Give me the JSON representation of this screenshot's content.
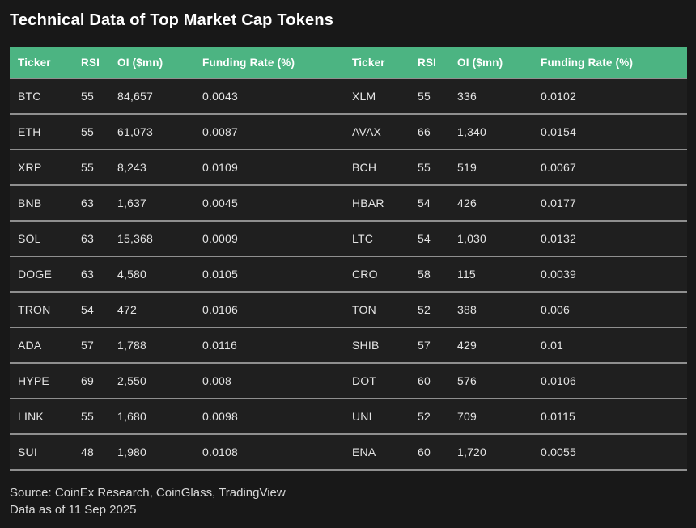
{
  "page": {
    "title": "Technical Data of Top Market Cap Tokens",
    "footer_line1": "Source: CoinEx Research, CoinGlass, TradingView",
    "footer_line2": "Data as of 11 Sep 2025"
  },
  "colors": {
    "page_background": "#181818",
    "row_background": "#1f1f1f",
    "header_background": "#4cb482",
    "divider": "#8f8f8f",
    "title_text": "#ffffff",
    "cell_text": "#e4e4e4",
    "footer_text": "#d8d8d8"
  },
  "chart_data": {
    "type": "table",
    "title": "Technical Data of Top Market Cap Tokens",
    "headers": [
      "Ticker",
      "RSI",
      "OI ($mn)",
      "Funding Rate (%)",
      "Ticker",
      "RSI",
      "OI ($mn)",
      "Funding Rate (%)"
    ],
    "column_keys": [
      "ticker",
      "rsi",
      "oi-mn",
      "funding-rate",
      "ticker",
      "rsi",
      "oi-mn",
      "funding-rate"
    ],
    "rows": [
      [
        "BTC",
        "55",
        "84,657",
        "0.0043",
        "XLM",
        "55",
        "336",
        "0.0102"
      ],
      [
        "ETH",
        "55",
        "61,073",
        "0.0087",
        "AVAX",
        "66",
        "1,340",
        "0.0154"
      ],
      [
        "XRP",
        "55",
        "8,243",
        "0.0109",
        "BCH",
        "55",
        "519",
        "0.0067"
      ],
      [
        "BNB",
        "63",
        "1,637",
        "0.0045",
        "HBAR",
        "54",
        "426",
        "0.0177"
      ],
      [
        "SOL",
        "63",
        "15,368",
        "0.0009",
        "LTC",
        "54",
        "1,030",
        "0.0132"
      ],
      [
        "DOGE",
        "63",
        "4,580",
        "0.0105",
        "CRO",
        "58",
        "115",
        "0.0039"
      ],
      [
        "TRON",
        "54",
        "472",
        "0.0106",
        "TON",
        "52",
        "388",
        "0.006"
      ],
      [
        "ADA",
        "57",
        "1,788",
        "0.0116",
        "SHIB",
        "57",
        "429",
        "0.01"
      ],
      [
        "HYPE",
        "69",
        "2,550",
        "0.008",
        "DOT",
        "60",
        "576",
        "0.0106"
      ],
      [
        "LINK",
        "55",
        "1,680",
        "0.0098",
        "UNI",
        "52",
        "709",
        "0.0115"
      ],
      [
        "SUI",
        "48",
        "1,980",
        "0.0108",
        "ENA",
        "60",
        "1,720",
        "0.0055"
      ]
    ],
    "notes": [
      "Source: CoinEx Research, CoinGlass, TradingView",
      "Data as of 11 Sep 2025"
    ]
  }
}
